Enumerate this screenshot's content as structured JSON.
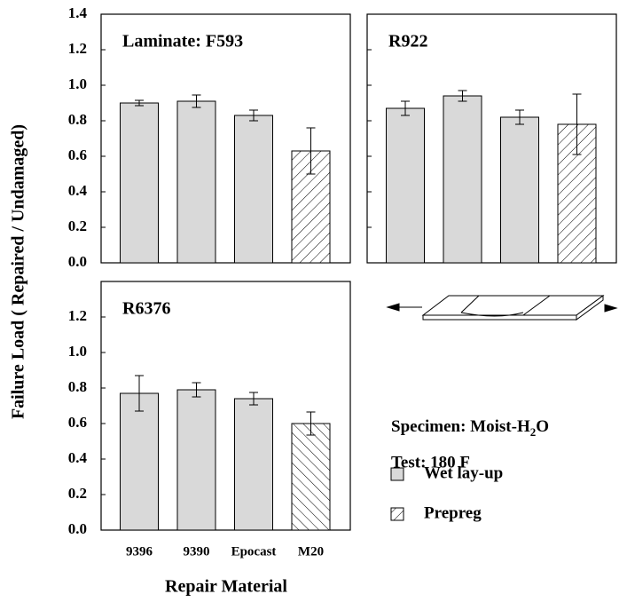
{
  "chart_data": [
    {
      "type": "bar",
      "title": "Laminate: F593",
      "ylim": [
        0,
        1.4
      ],
      "yticks": [
        {
          "value": 0,
          "label": "0.0"
        },
        {
          "value": 0.2,
          "label": "0.2"
        },
        {
          "value": 0.4,
          "label": "0.4"
        },
        {
          "value": 0.6,
          "label": "0.6"
        },
        {
          "value": 0.8,
          "label": "0.8"
        },
        {
          "value": 1,
          "label": "1.0"
        },
        {
          "value": 1.2,
          "label": "1.2"
        },
        {
          "value": 1.4,
          "label": "1.4"
        }
      ],
      "series": [
        {
          "values": [
            0.9,
            0.91,
            0.83,
            null
          ],
          "errors": [
            0.015,
            0.035,
            0.03,
            null
          ],
          "color": "#d9d9d9"
        },
        {
          "values": [
            null,
            null,
            null,
            0.63
          ],
          "errors": [
            null,
            null,
            null,
            0.13
          ],
          "hatch": "/"
        }
      ]
    },
    {
      "type": "bar",
      "title": "R922",
      "ylim": [
        0,
        1.4
      ],
      "yticks": [
        0,
        0.2,
        0.4,
        0.6,
        0.8,
        1,
        1.2,
        1.4
      ],
      "tick_labels": false,
      "series": [
        {
          "values": [
            0.87,
            0.94,
            0.82,
            null
          ],
          "errors": [
            0.04,
            0.03,
            0.04,
            null
          ],
          "color": "#d9d9d9"
        },
        {
          "values": [
            null,
            null,
            null,
            0.78
          ],
          "errors": [
            null,
            null,
            null,
            0.17
          ],
          "hatch": "/"
        }
      ]
    },
    {
      "type": "bar",
      "title": "R6376",
      "ylim": [
        0,
        1.4
      ],
      "yticks": [
        {
          "value": 0,
          "label": "0.0"
        },
        {
          "value": 0.2,
          "label": "0.2"
        },
        {
          "value": 0.4,
          "label": "0.4"
        },
        {
          "value": 0.6,
          "label": "0.6"
        },
        {
          "value": 0.8,
          "label": "0.8"
        },
        {
          "value": 1,
          "label": "1.0"
        },
        {
          "value": 1.2,
          "label": "1.2"
        }
      ],
      "categories": [
        "9396",
        "9390",
        "Epocast",
        "M20"
      ],
      "series": [
        {
          "values": [
            0.77,
            0.79,
            0.74,
            null
          ],
          "errors": [
            0.1,
            0.04,
            0.035,
            null
          ],
          "color": "#d9d9d9"
        },
        {
          "values": [
            null,
            null,
            null,
            0.6
          ],
          "errors": [
            null,
            null,
            null,
            0.065
          ],
          "hatch": "\\"
        }
      ]
    }
  ],
  "y_label": "Failure Load   ( Repaired / Undamaged)",
  "x_label": "Repair Material",
  "specimen": {
    "text": "Specimen: Moist-H",
    "sub": "2",
    "after": "O"
  },
  "test": "Test: 180 F",
  "legend": [
    {
      "name": "Wet lay-up",
      "color": "#d9d9d9"
    },
    {
      "name": "Prepreg",
      "hatch": "/"
    }
  ]
}
